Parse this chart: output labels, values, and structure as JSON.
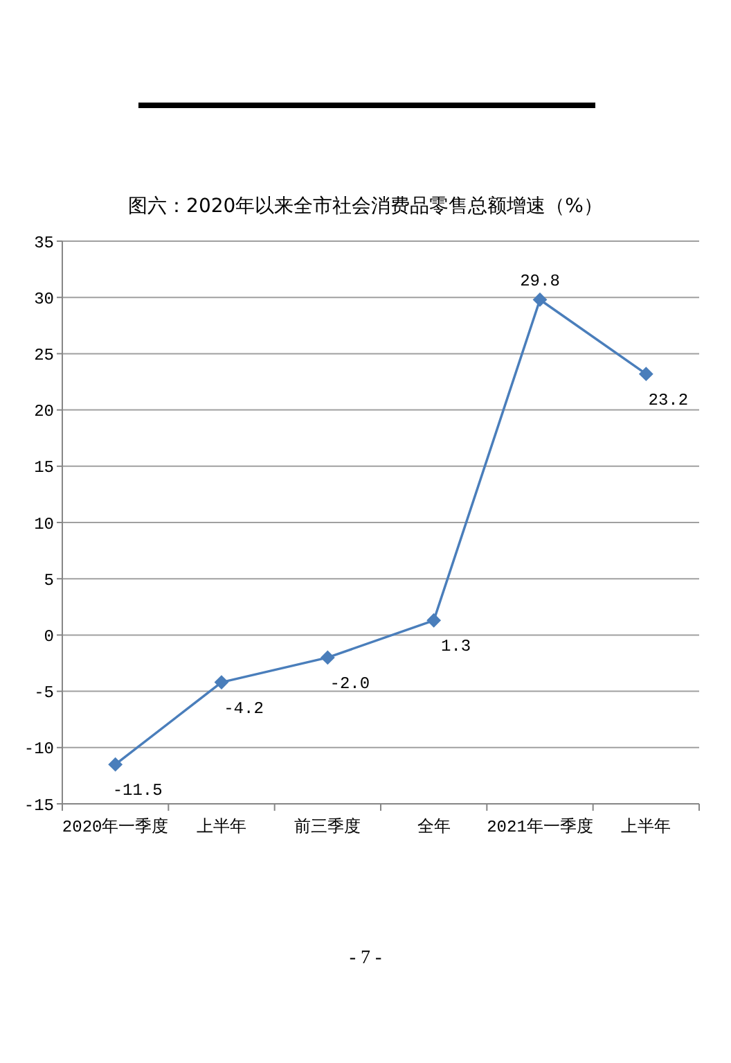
{
  "chart_data": {
    "type": "line",
    "title": "图六：2020年以来全市社会消费品零售总额增速（%）",
    "categories": [
      "2020年一季度",
      "上半年",
      "前三季度",
      "全年",
      "2021年一季度",
      "上半年"
    ],
    "series": [
      {
        "color": "#4a7ebb",
        "values": [
          -11.5,
          -4.2,
          -2.0,
          1.3,
          29.8,
          23.2
        ],
        "value_labels": [
          "-11.5",
          "-4.2",
          "-2.0",
          "1.3",
          "29.8",
          "23.2"
        ]
      }
    ],
    "ylim": [
      -15,
      35
    ],
    "yticks": [
      -15,
      -10,
      -5,
      0,
      5,
      10,
      15,
      20,
      25,
      30,
      35
    ],
    "grid": "y",
    "marker": "diamond",
    "line_style": "solid",
    "annotations": [
      "- 7 -"
    ]
  }
}
